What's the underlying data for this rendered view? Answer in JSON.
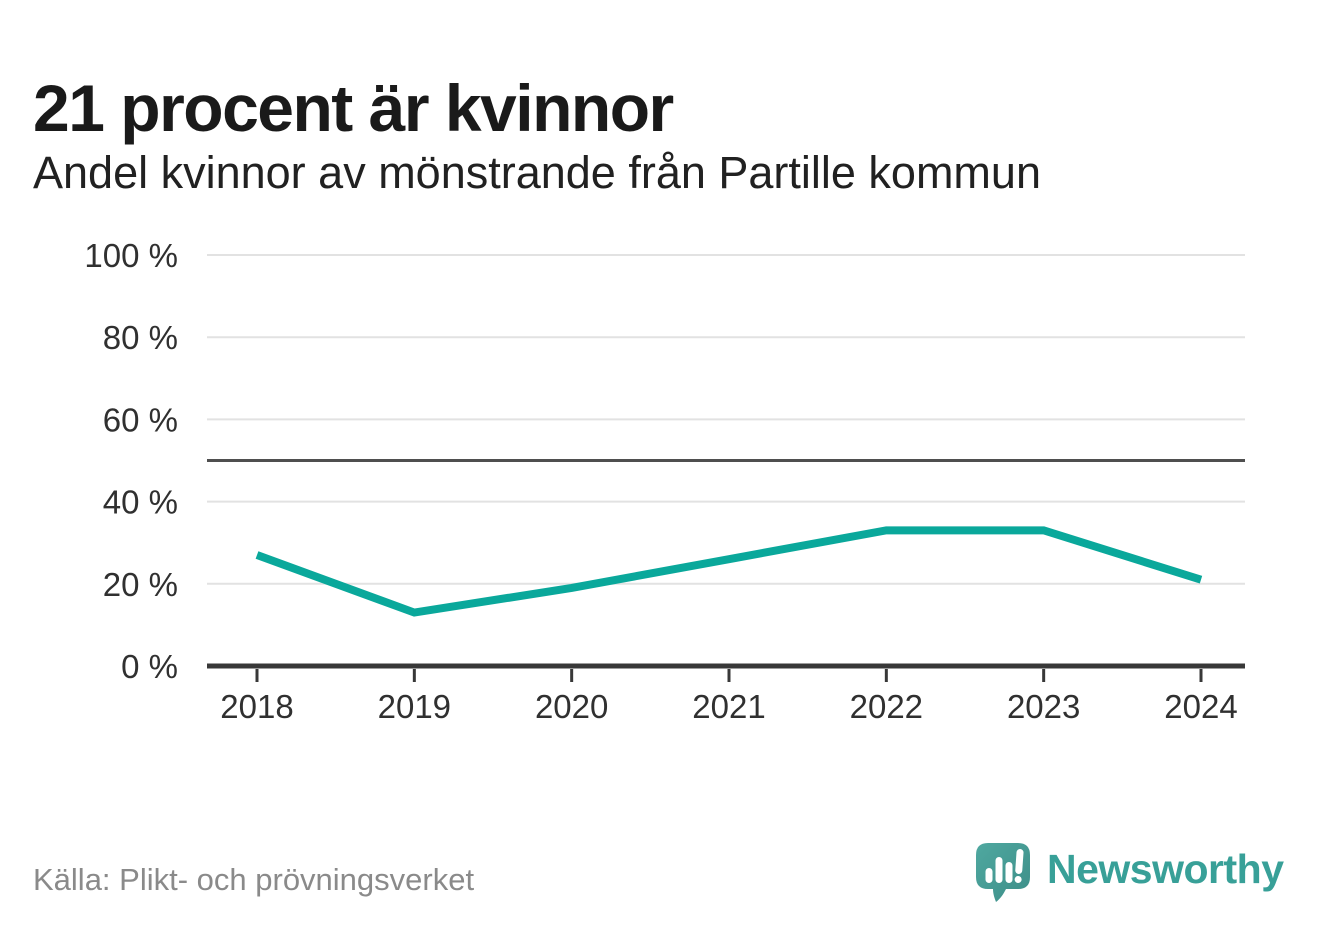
{
  "header": {
    "title": "21 procent är kvinnor",
    "subtitle": "Andel kvinnor av mönstrande från Partille kommun"
  },
  "chart_data": {
    "type": "line",
    "title": "21 procent är kvinnor",
    "subtitle": "Andel kvinnor av mönstrande från Partille kommun",
    "categories": [
      "2018",
      "2019",
      "2020",
      "2021",
      "2022",
      "2023",
      "2024"
    ],
    "series": [
      {
        "name": "Andel kvinnor av mönstrande",
        "values": [
          27,
          13,
          19,
          26,
          33,
          33,
          21
        ],
        "color": "#0aa89b"
      }
    ],
    "unit": "%",
    "xlabel": "",
    "ylabel": "",
    "ylim": [
      0,
      100
    ],
    "yticks": [
      0,
      20,
      40,
      60,
      80,
      100
    ],
    "ytick_suffix": " %",
    "reference_line": 50,
    "grid": true,
    "legend": "none"
  },
  "footer": {
    "source": "Källa: Plikt- och prövningsverket",
    "brand_name": "Newsworthy"
  },
  "colors": {
    "accent": "#0aa89b",
    "title_text": "#1a1a1a",
    "subtitle_text": "#212121",
    "axis_text": "#303030",
    "gridline": "#e2e2e2",
    "reference_line": "#4f4f4f",
    "axis_line": "#383838",
    "source_text": "#8a8a8a",
    "brand_teal": "#38a098",
    "logo_teal_light": "#4fa8a0",
    "logo_teal_dark": "#3d8e88"
  }
}
